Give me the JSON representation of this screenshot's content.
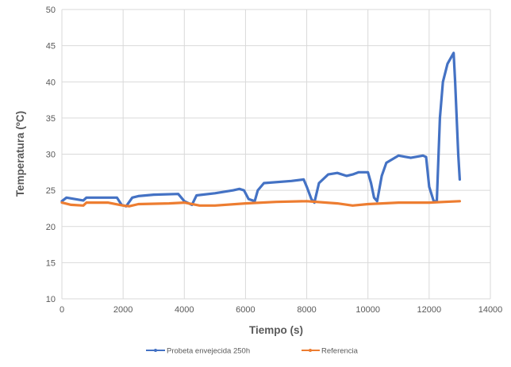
{
  "chart_data": {
    "type": "line",
    "title": "",
    "xlabel": "Tiempo (s)",
    "ylabel": "Temperatura (ºC)",
    "xlim": [
      0,
      14000
    ],
    "ylim": [
      10,
      50
    ],
    "xticks": [
      0,
      2000,
      4000,
      6000,
      8000,
      10000,
      12000,
      14000
    ],
    "yticks": [
      10,
      15,
      20,
      25,
      30,
      35,
      40,
      45,
      50
    ],
    "grid": true,
    "legend": "bottom",
    "series": [
      {
        "name": "Probeta envejecida 250h",
        "color": "#4472C4",
        "x": [
          0,
          150,
          700,
          800,
          1800,
          1950,
          2100,
          2300,
          2500,
          3000,
          3800,
          4000,
          4250,
          4400,
          5000,
          5600,
          5800,
          5950,
          6100,
          6300,
          6400,
          6600,
          7500,
          7900,
          8000,
          8150,
          8250,
          8400,
          8700,
          9000,
          9300,
          9500,
          9700,
          10000,
          10100,
          10200,
          10300,
          10450,
          10600,
          11000,
          11400,
          11800,
          11900,
          12000,
          12150,
          12250,
          12350,
          12450,
          12600,
          12800,
          12850,
          12950,
          13000
        ],
        "y": [
          23.5,
          24.0,
          23.6,
          24.0,
          24.0,
          23.0,
          22.8,
          24.0,
          24.2,
          24.4,
          24.5,
          23.5,
          23.0,
          24.3,
          24.6,
          25.0,
          25.2,
          25.0,
          23.8,
          23.5,
          25.0,
          26.0,
          26.3,
          26.5,
          25.5,
          23.8,
          23.3,
          26.0,
          27.2,
          27.4,
          27.0,
          27.2,
          27.5,
          27.5,
          26.0,
          24.0,
          23.5,
          27.0,
          28.8,
          29.8,
          29.5,
          29.8,
          29.6,
          25.5,
          23.5,
          23.5,
          35.0,
          40.0,
          42.5,
          44.0,
          40.0,
          30.0,
          26.5
        ]
      },
      {
        "name": "Referencia",
        "color": "#ED7D31",
        "x": [
          0,
          300,
          700,
          800,
          1500,
          2000,
          2200,
          2500,
          3500,
          4000,
          4500,
          5000,
          6000,
          7000,
          8000,
          9000,
          9500,
          10000,
          11000,
          12000,
          12500,
          13000
        ],
        "y": [
          23.3,
          23.0,
          22.9,
          23.3,
          23.3,
          22.9,
          22.8,
          23.1,
          23.2,
          23.3,
          22.9,
          22.9,
          23.2,
          23.4,
          23.5,
          23.2,
          22.9,
          23.1,
          23.3,
          23.3,
          23.4,
          23.5
        ]
      }
    ]
  }
}
